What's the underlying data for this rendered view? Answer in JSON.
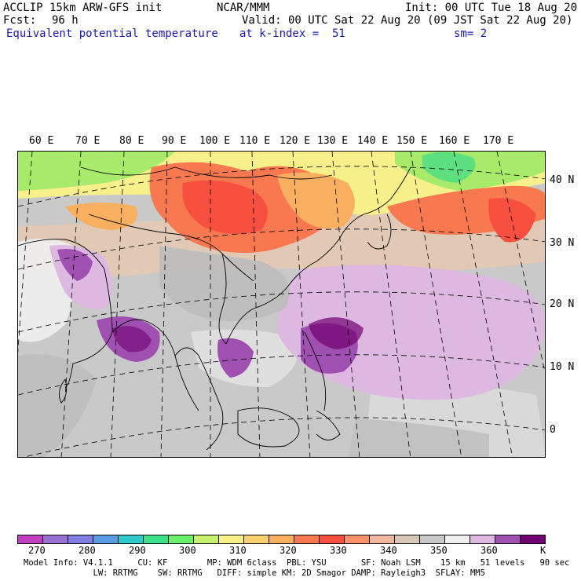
{
  "header": {
    "model_line": "ACCLIP 15km ARW-GFS init",
    "org": "NCAR/MMM",
    "init": "Init: 00 UTC Tue 18 Aug 20",
    "fcst_label": "Fcst:",
    "fcst_value": "96 h",
    "valid": "Valid: 00 UTC Sat 22 Aug 20 (09 JST Sat 22 Aug 20)",
    "field": "Equivalent potential temperature",
    "level": "at k-index =  51",
    "smoothing": "sm= 2"
  },
  "map": {
    "lon_labels": [
      "60 E",
      "70 E",
      "80 E",
      "90 E",
      "100 E",
      "110 E",
      "120 E",
      "130 E",
      "140 E",
      "150 E",
      "160 E",
      "170 E"
    ],
    "lat_labels": [
      "40 N",
      "30 N",
      "20 N",
      "10 N",
      "0"
    ]
  },
  "colorbar": {
    "colors": [
      "#c040c0",
      "#9a6fd2",
      "#7f7ee0",
      "#5a9ae0",
      "#2ec9c9",
      "#3ee08a",
      "#6cf06c",
      "#c8f070",
      "#f8f08a",
      "#f8d070",
      "#f8b060",
      "#f87850",
      "#f85040",
      "#f8906a",
      "#f0b8a0",
      "#d8c8b8",
      "#c8c8c8",
      "#f0f0f0",
      "#ddb8e0",
      "#a050b0",
      "#700070"
    ],
    "labels": [
      "270",
      "280",
      "290",
      "300",
      "310",
      "320",
      "330",
      "340",
      "350",
      "360"
    ],
    "unit": "K"
  },
  "footer": {
    "line1": "Model Info: V4.1.1     CU: KF        MP: WDM 6class  PBL: YSU       SF: Noah LSM    15 km   51 levels   90 sec",
    "line2": "              LW: RRTMG    SW: RRTMG   DIFF: simple KM: 2D Smagor DAMP: Rayleigh3  SFLAY: MM5"
  }
}
